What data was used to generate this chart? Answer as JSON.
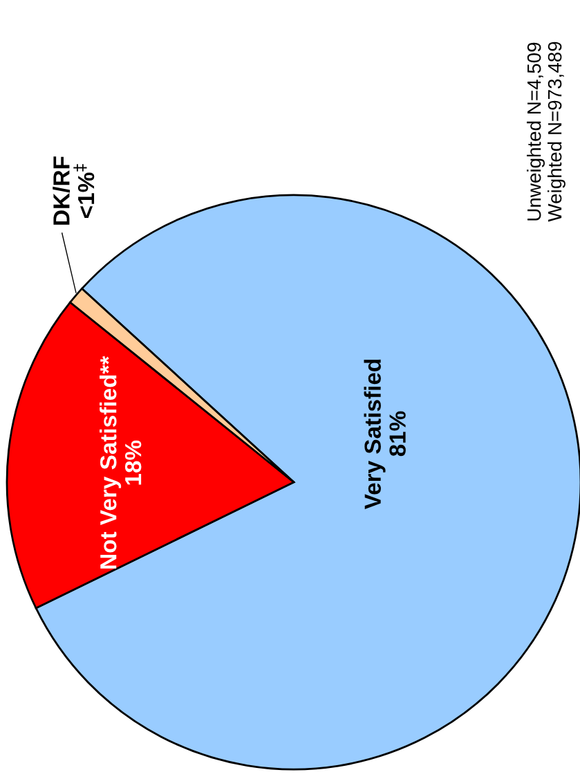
{
  "chart_data": {
    "type": "pie",
    "categories": [
      "Very Satisfied",
      "Not Very Satisfied**",
      "DK/RF"
    ],
    "values": [
      81,
      18,
      1
    ],
    "value_labels": [
      "81%",
      "18%",
      "<1%$^{‡}$"
    ],
    "colors": [
      "#99ccff",
      "#ff0000",
      "#ffcc99"
    ],
    "annotations": [
      "Unweighted N=4,509\nWeighted N=973,489"
    ]
  }
}
